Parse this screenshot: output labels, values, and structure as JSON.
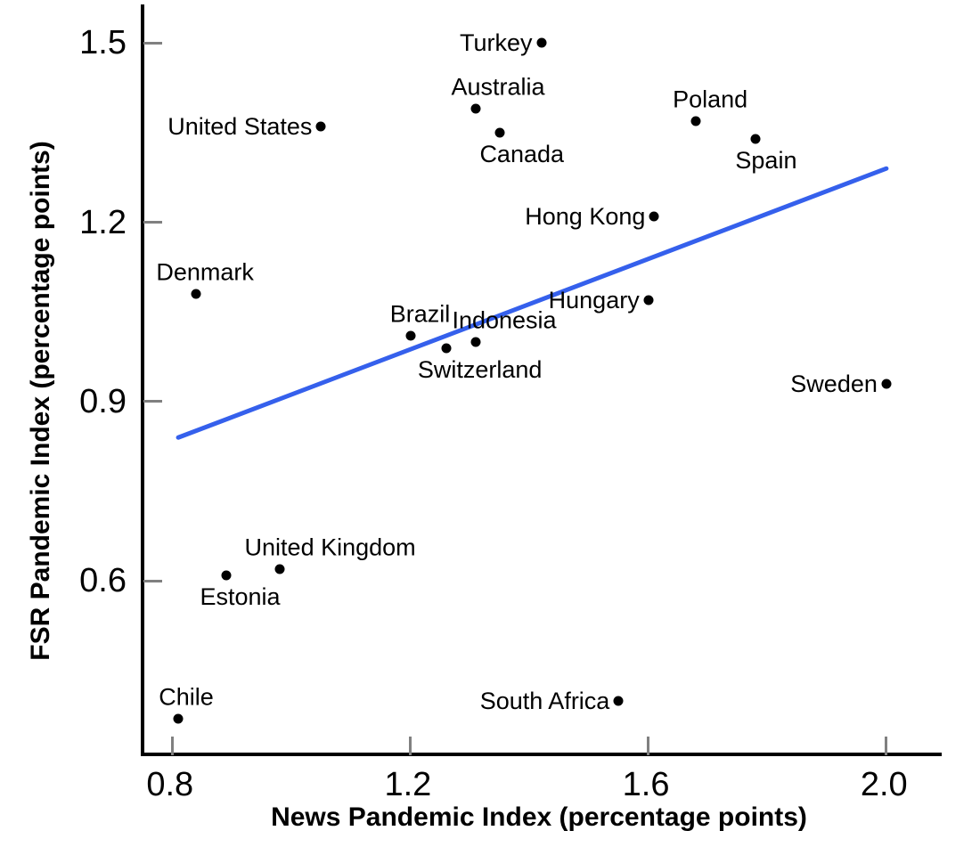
{
  "chart_data": {
    "type": "scatter",
    "title": "",
    "xlabel": "News Pandemic Index (percentage points)",
    "ylabel": "FSR Pandemic Index (percentage points)",
    "xlim": [
      0.75,
      2.09
    ],
    "ylim": [
      0.31,
      1.56
    ],
    "x_tick_values": [
      0.8,
      1.2,
      1.6,
      2.0
    ],
    "x_tick_labels": [
      "0.8",
      "1.2",
      "1.6",
      "2.0"
    ],
    "y_tick_values": [
      0.6,
      0.9,
      1.2,
      1.5
    ],
    "y_tick_labels": [
      "0.6",
      "0.9",
      "1.2",
      "1.5"
    ],
    "grid": false,
    "legend": "none",
    "points": [
      {
        "label": "Turkey",
        "x": 1.42,
        "y": 1.5,
        "label_pos": "left",
        "label_dx": 0
      },
      {
        "label": "Australia",
        "x": 1.31,
        "y": 1.39,
        "label_pos": "above",
        "label_dx": 25
      },
      {
        "label": "Canada",
        "x": 1.35,
        "y": 1.35,
        "label_pos": "below",
        "label_dx": 25
      },
      {
        "label": "United States",
        "x": 1.05,
        "y": 1.36,
        "label_pos": "left",
        "label_dx": 0
      },
      {
        "label": "Poland",
        "x": 1.68,
        "y": 1.37,
        "label_pos": "above",
        "label_dx": 16
      },
      {
        "label": "Spain",
        "x": 1.78,
        "y": 1.34,
        "label_pos": "below",
        "label_dx": 12
      },
      {
        "label": "Hong Kong",
        "x": 1.61,
        "y": 1.21,
        "label_pos": "left",
        "label_dx": 0
      },
      {
        "label": "Denmark",
        "x": 0.84,
        "y": 1.08,
        "label_pos": "above",
        "label_dx": 10
      },
      {
        "label": "Hungary",
        "x": 1.6,
        "y": 1.07,
        "label_pos": "left",
        "label_dx": 0
      },
      {
        "label": "Brazil",
        "x": 1.2,
        "y": 1.01,
        "label_pos": "above",
        "label_dx": 11
      },
      {
        "label": "Indonesia",
        "x": 1.31,
        "y": 1.0,
        "label_pos": "above",
        "label_dx": 32
      },
      {
        "label": "Switzerland",
        "x": 1.26,
        "y": 0.99,
        "label_pos": "below",
        "label_dx": 38
      },
      {
        "label": "Sweden",
        "x": 2.0,
        "y": 0.93,
        "label_pos": "left",
        "label_dx": 0
      },
      {
        "label": "United Kingdom",
        "x": 0.98,
        "y": 0.62,
        "label_pos": "above",
        "label_dx": 57
      },
      {
        "label": "Estonia",
        "x": 0.89,
        "y": 0.61,
        "label_pos": "below",
        "label_dx": 16
      },
      {
        "label": "South Africa",
        "x": 1.55,
        "y": 0.4,
        "label_pos": "left",
        "label_dx": 0
      },
      {
        "label": "Chile",
        "x": 0.81,
        "y": 0.37,
        "label_pos": "above",
        "label_dx": 9
      }
    ],
    "trend_line": {
      "x1": 0.81,
      "y1": 0.84,
      "x2": 2.0,
      "y2": 1.29
    },
    "colors": {
      "point": "#000000",
      "trend_line": "#3560EC",
      "axis": "#000000",
      "tick": "#808080",
      "text": "#000000",
      "background": "#ffffff"
    }
  }
}
